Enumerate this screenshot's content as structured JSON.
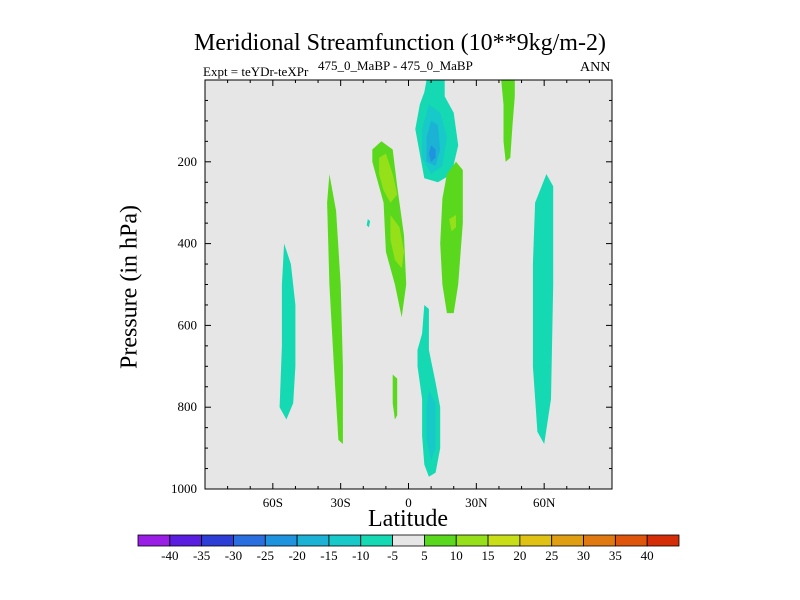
{
  "header": {
    "title": "Meridional Streamfunction (10**9kg/m-2)",
    "experiment": "Expt = teYDr-teXPr",
    "period": "475_0_MaBP - 475_0_MaBP",
    "season": "ANN"
  },
  "chart_data": {
    "type": "heatmap",
    "title": "Meridional Streamfunction (10**9kg/m-2)",
    "xlabel": "Latitude",
    "ylabel": "Pressure (in hPa)",
    "xlim": [
      -90,
      90
    ],
    "ylim": [
      1000,
      0
    ],
    "xticks": [
      -60,
      -30,
      0,
      30,
      60
    ],
    "xtick_labels": [
      "60S",
      "30S",
      "0",
      "30N",
      "60N"
    ],
    "yticks": [
      200,
      400,
      600,
      800,
      1000
    ],
    "ytick_labels": [
      "200",
      "400",
      "600",
      "800",
      "1000"
    ],
    "background_color": "#e6e6e6",
    "colorbar": {
      "levels": [
        -40,
        -35,
        -30,
        -25,
        -20,
        -15,
        -10,
        -5,
        5,
        10,
        15,
        20,
        25,
        30,
        35,
        40
      ],
      "colors": [
        "#9a1ee6",
        "#5a1ee0",
        "#2d3ed6",
        "#2a6fe0",
        "#1f93de",
        "#1cb2d6",
        "#17c9c8",
        "#14d9b3",
        "#e6e6e6",
        "#5ad81d",
        "#96e01a",
        "#c8df18",
        "#e0c215",
        "#e09e12",
        "#e07a10",
        "#e0550c",
        "#d42d08"
      ]
    },
    "regions": [
      {
        "name": "neg-cell-55S",
        "level": -7.5,
        "color": "#14d9b3",
        "outline": [
          [
            -55,
            400
          ],
          [
            -52,
            450
          ],
          [
            -50,
            550
          ],
          [
            -50,
            700
          ],
          [
            -51,
            790
          ],
          [
            -54,
            830
          ],
          [
            -57,
            800
          ],
          [
            -56,
            650
          ],
          [
            -56,
            500
          ]
        ]
      },
      {
        "name": "pos-cell-30S",
        "level": 7.5,
        "color": "#5ad81d",
        "outline": [
          [
            -35,
            230
          ],
          [
            -32,
            320
          ],
          [
            -30,
            500
          ],
          [
            -29,
            700
          ],
          [
            -29,
            890
          ],
          [
            -31,
            880
          ],
          [
            -33,
            700
          ],
          [
            -35,
            500
          ],
          [
            -36,
            300
          ]
        ]
      },
      {
        "name": "pos-cell-10S-outer",
        "level": 7.5,
        "color": "#5ad81d",
        "outline": [
          [
            -16,
            170
          ],
          [
            -12,
            150
          ],
          [
            -7,
            170
          ],
          [
            -5,
            260
          ],
          [
            -2,
            380
          ],
          [
            -1,
            500
          ],
          [
            -3,
            580
          ],
          [
            -6,
            500
          ],
          [
            -10,
            420
          ],
          [
            -11,
            300
          ],
          [
            -14,
            240
          ],
          [
            -16,
            200
          ]
        ]
      },
      {
        "name": "pos-cell-10S-inner",
        "level": 12.5,
        "color": "#96e01a",
        "outline": [
          [
            -13,
            190
          ],
          [
            -10,
            180
          ],
          [
            -7,
            230
          ],
          [
            -5,
            280
          ],
          [
            -8,
            300
          ],
          [
            -11,
            270
          ],
          [
            -13,
            230
          ]
        ]
      },
      {
        "name": "pos-cell-10S-lower",
        "level": 12.5,
        "color": "#96e01a",
        "outline": [
          [
            -8,
            330
          ],
          [
            -4,
            360
          ],
          [
            -2,
            420
          ],
          [
            -3,
            460
          ],
          [
            -6,
            440
          ],
          [
            -8,
            390
          ]
        ]
      },
      {
        "name": "neg-cell-10N-upper-outer",
        "level": -7.5,
        "color": "#14d9b3",
        "outline": [
          [
            8,
            0
          ],
          [
            16,
            0
          ],
          [
            16,
            40
          ],
          [
            20,
            80
          ],
          [
            22,
            160
          ],
          [
            19,
            230
          ],
          [
            13,
            250
          ],
          [
            7,
            240
          ],
          [
            5,
            180
          ],
          [
            3,
            120
          ],
          [
            5,
            60
          ],
          [
            7,
            30
          ]
        ]
      },
      {
        "name": "neg-cell-10N-upper-mid",
        "level": -12.5,
        "color": "#17c9c8",
        "outline": [
          [
            9,
            60
          ],
          [
            14,
            80
          ],
          [
            17,
            140
          ],
          [
            15,
            210
          ],
          [
            10,
            230
          ],
          [
            6,
            190
          ],
          [
            6,
            120
          ]
        ]
      },
      {
        "name": "neg-cell-10N-upper-core",
        "level": -17.5,
        "color": "#1cb2d6",
        "outline": [
          [
            10,
            100
          ],
          [
            13,
            110
          ],
          [
            14,
            170
          ],
          [
            12,
            210
          ],
          [
            8,
            200
          ],
          [
            8,
            140
          ]
        ]
      },
      {
        "name": "neg-cell-10N-upper-max",
        "level": -22.5,
        "color": "#1f93de",
        "outline": [
          [
            10,
            160
          ],
          [
            12,
            170
          ],
          [
            12,
            190
          ],
          [
            10,
            200
          ],
          [
            9,
            180
          ]
        ]
      },
      {
        "name": "pos-cell-20N",
        "level": 7.5,
        "color": "#5ad81d",
        "outline": [
          [
            15,
            290
          ],
          [
            17,
            230
          ],
          [
            21,
            200
          ],
          [
            24,
            220
          ],
          [
            24,
            350
          ],
          [
            22,
            500
          ],
          [
            20,
            570
          ],
          [
            17,
            570
          ],
          [
            15,
            500
          ],
          [
            14,
            400
          ]
        ]
      },
      {
        "name": "pos-cell-20N-inner",
        "level": 12.5,
        "color": "#96e01a",
        "outline": [
          [
            18,
            340
          ],
          [
            21,
            330
          ],
          [
            21,
            360
          ],
          [
            19,
            370
          ]
        ]
      },
      {
        "name": "neg-cell-10N-lower-outer",
        "level": -7.5,
        "color": "#14d9b3",
        "outline": [
          [
            7,
            550
          ],
          [
            9,
            560
          ],
          [
            9,
            660
          ],
          [
            12,
            740
          ],
          [
            14,
            800
          ],
          [
            14,
            900
          ],
          [
            12,
            960
          ],
          [
            9,
            970
          ],
          [
            7,
            940
          ],
          [
            6,
            870
          ],
          [
            6,
            780
          ],
          [
            4,
            700
          ],
          [
            4,
            660
          ],
          [
            6,
            620
          ]
        ]
      },
      {
        "name": "neg-cell-10N-lower-core",
        "level": -12.5,
        "color": "#17c9c8",
        "outline": [
          [
            9,
            760
          ],
          [
            12,
            790
          ],
          [
            12,
            900
          ],
          [
            10,
            930
          ],
          [
            8,
            880
          ],
          [
            8,
            800
          ]
        ]
      },
      {
        "name": "pos-cell-45N",
        "level": 7.5,
        "color": "#5ad81d",
        "outline": [
          [
            41,
            0
          ],
          [
            47,
            0
          ],
          [
            47,
            40
          ],
          [
            46,
            110
          ],
          [
            45,
            190
          ],
          [
            43,
            200
          ],
          [
            42,
            150
          ],
          [
            42,
            60
          ]
        ]
      },
      {
        "name": "neg-cell-60N",
        "level": -7.5,
        "color": "#14d9b3",
        "outline": [
          [
            61,
            230
          ],
          [
            64,
            260
          ],
          [
            64,
            500
          ],
          [
            63,
            780
          ],
          [
            60,
            890
          ],
          [
            57,
            860
          ],
          [
            55,
            700
          ],
          [
            55,
            450
          ],
          [
            56,
            300
          ]
        ]
      },
      {
        "name": "small-pos-5S",
        "level": 7.5,
        "color": "#5ad81d",
        "outline": [
          [
            -7,
            720
          ],
          [
            -5,
            730
          ],
          [
            -5,
            820
          ],
          [
            -6,
            830
          ],
          [
            -7,
            790
          ]
        ]
      },
      {
        "name": "small-neg-15S",
        "level": -7.5,
        "color": "#14d9b3",
        "outline": [
          [
            -18,
            340
          ],
          [
            -17,
            345
          ],
          [
            -17.5,
            360
          ],
          [
            -18.5,
            355
          ]
        ]
      }
    ]
  }
}
